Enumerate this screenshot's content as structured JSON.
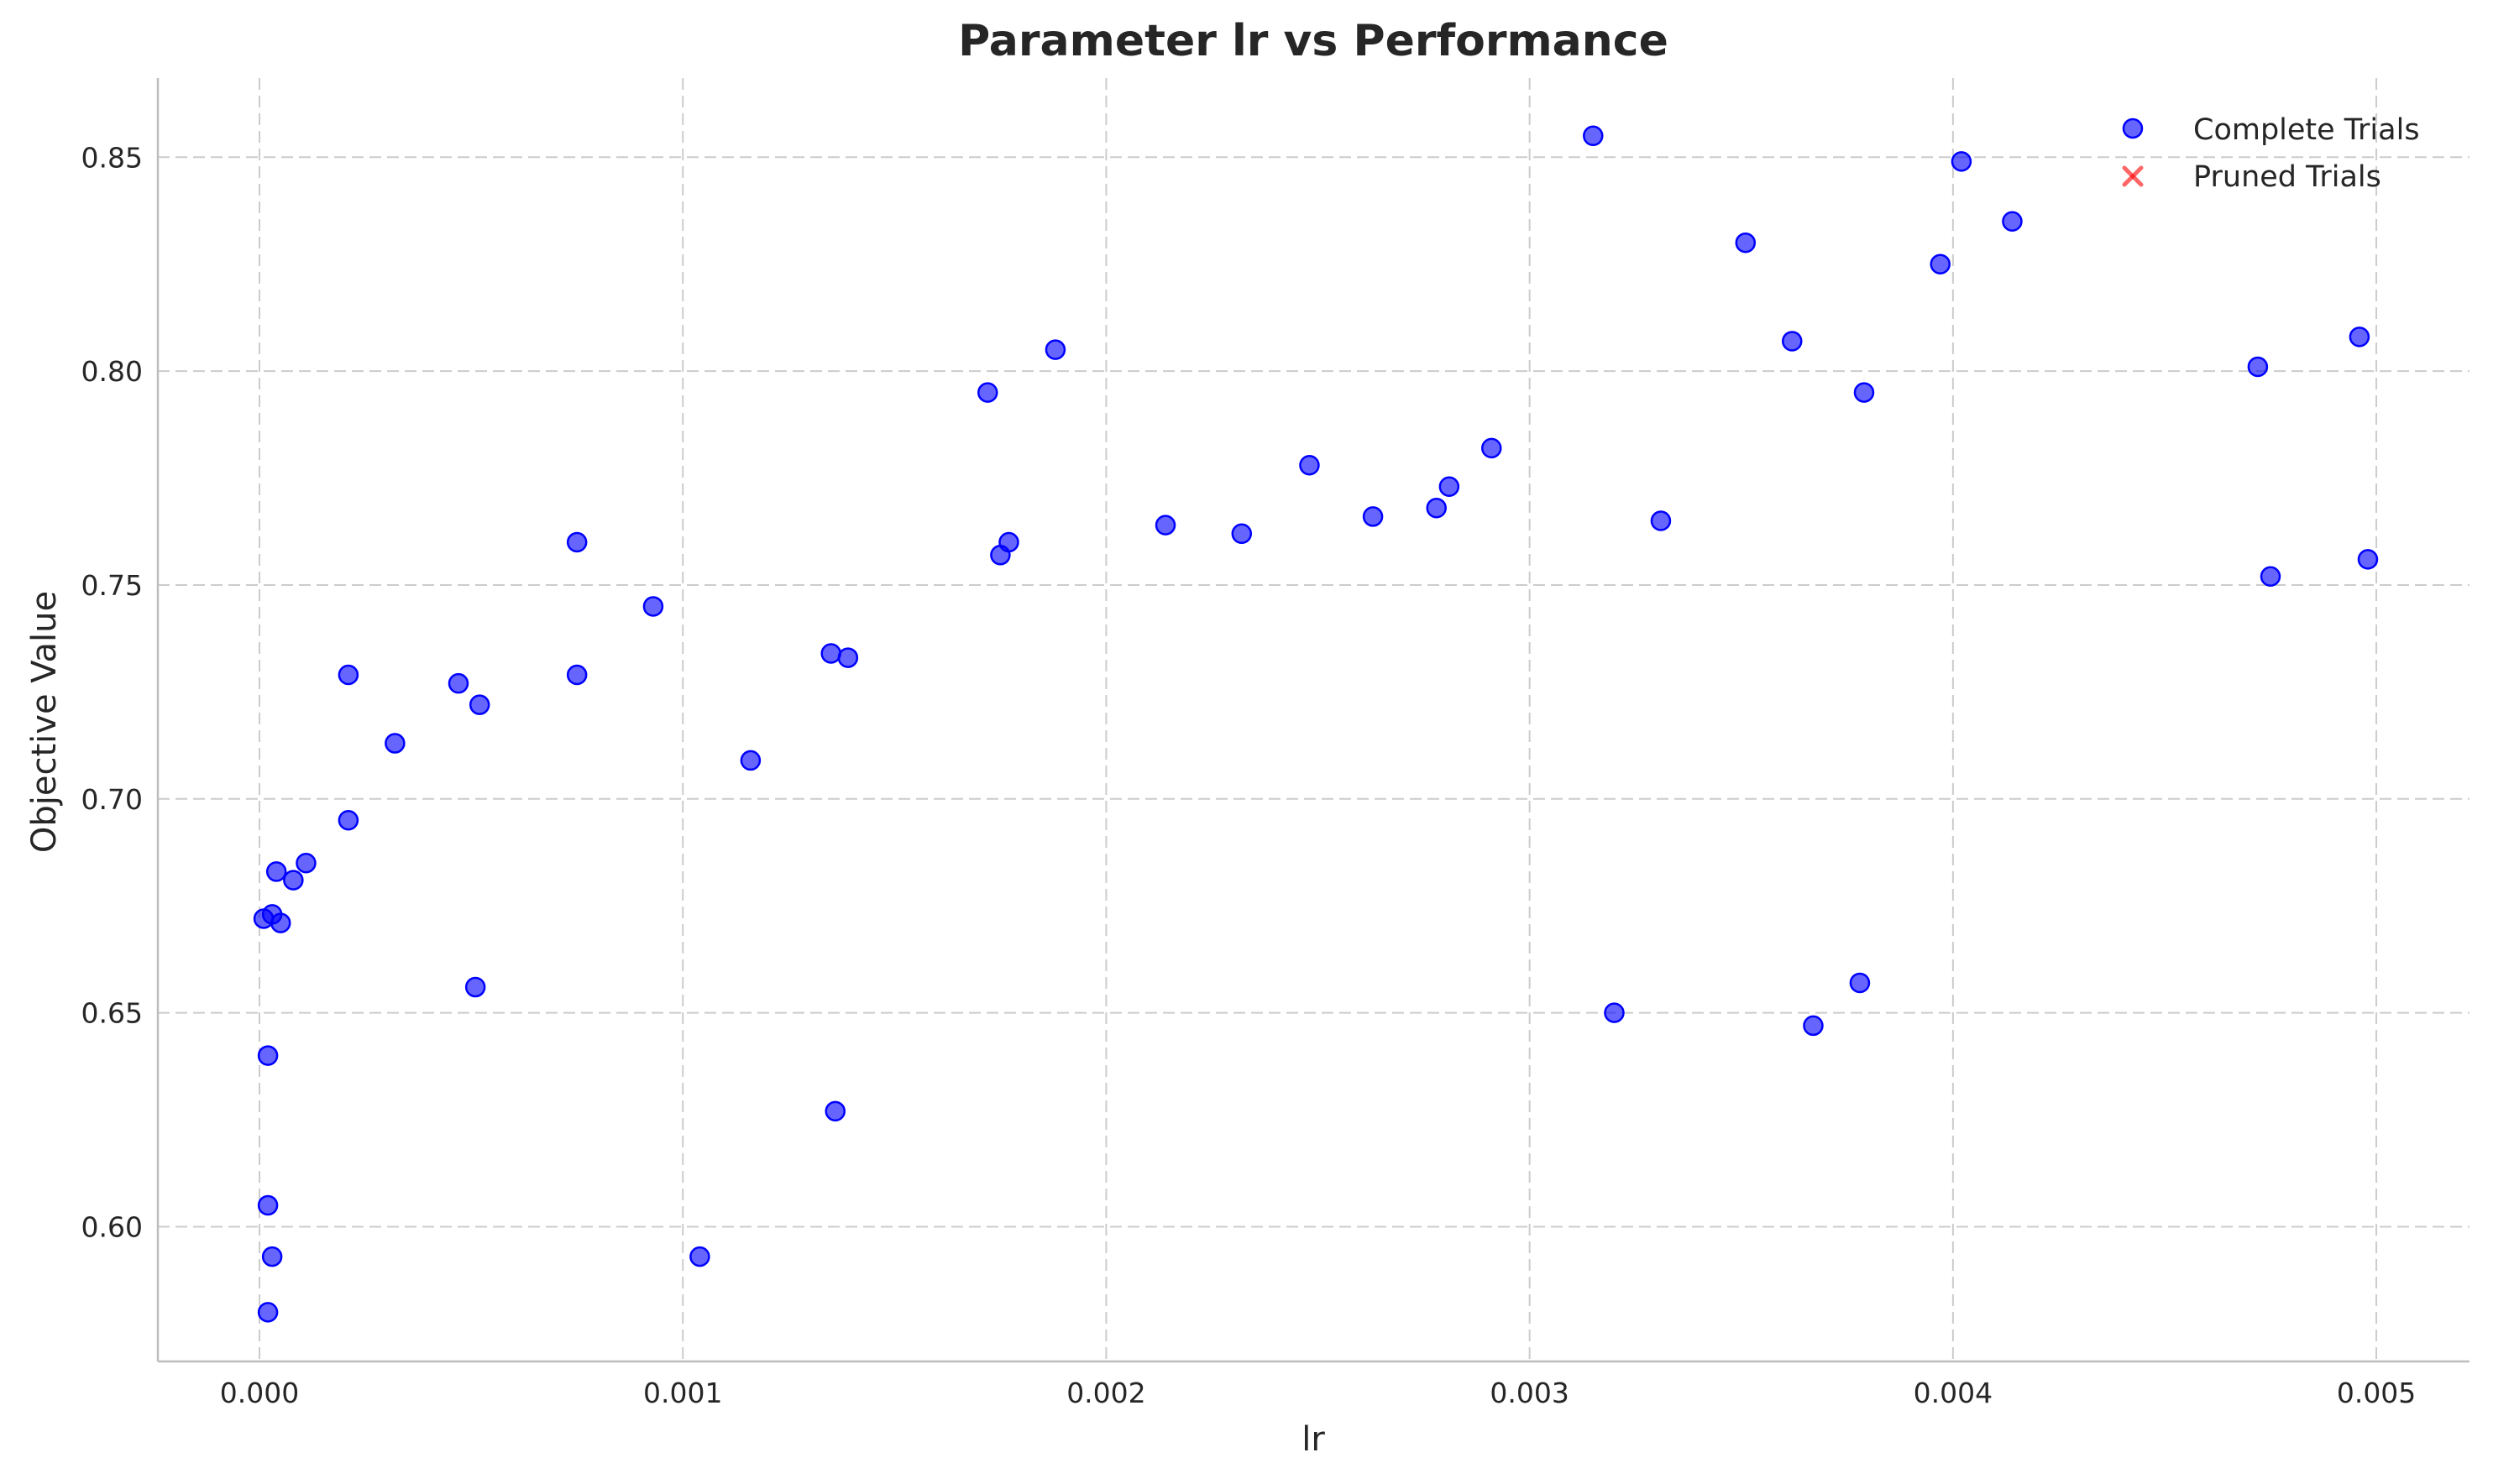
{
  "chart_data": {
    "type": "scatter",
    "title": "Parameter lr vs Performance",
    "xlabel": "lr",
    "ylabel": "Objective Value",
    "xlim": [
      -0.00024,
      0.00522
    ],
    "ylim": [
      0.5685,
      0.8685
    ],
    "x_ticks": [
      0.0,
      0.001,
      0.002,
      0.003,
      0.004,
      0.005
    ],
    "x_tick_labels": [
      "0.000",
      "0.001",
      "0.002",
      "0.003",
      "0.004",
      "0.005"
    ],
    "y_ticks": [
      0.6,
      0.65,
      0.7,
      0.75,
      0.8,
      0.85
    ],
    "y_tick_labels": [
      "0.60",
      "0.65",
      "0.70",
      "0.75",
      "0.80",
      "0.85"
    ],
    "grid": true,
    "legend_position": "top-right",
    "legend": [
      "Complete Trials",
      "Pruned Trials"
    ],
    "colors": {
      "complete": "#0000ff",
      "pruned": "#ff0000"
    },
    "series": [
      {
        "name": "Complete Trials",
        "marker": "circle",
        "points": [
          [
            1e-05,
            0.672
          ],
          [
            3e-05,
            0.673
          ],
          [
            5e-05,
            0.671
          ],
          [
            4e-05,
            0.683
          ],
          [
            8e-05,
            0.681
          ],
          [
            0.00011,
            0.685
          ],
          [
            2e-05,
            0.64
          ],
          [
            2e-05,
            0.605
          ],
          [
            3e-05,
            0.593
          ],
          [
            2e-05,
            0.58
          ],
          [
            0.00021,
            0.729
          ],
          [
            0.00021,
            0.695
          ],
          [
            0.00032,
            0.713
          ],
          [
            0.00047,
            0.727
          ],
          [
            0.00052,
            0.722
          ],
          [
            0.00051,
            0.656
          ],
          [
            0.00075,
            0.76
          ],
          [
            0.00075,
            0.729
          ],
          [
            0.00093,
            0.745
          ],
          [
            0.00104,
            0.593
          ],
          [
            0.00116,
            0.709
          ],
          [
            0.00135,
            0.734
          ],
          [
            0.00139,
            0.733
          ],
          [
            0.00136,
            0.627
          ],
          [
            0.00172,
            0.795
          ],
          [
            0.00175,
            0.757
          ],
          [
            0.00177,
            0.76
          ],
          [
            0.00188,
            0.805
          ],
          [
            0.00214,
            0.764
          ],
          [
            0.00232,
            0.762
          ],
          [
            0.00248,
            0.778
          ],
          [
            0.00263,
            0.766
          ],
          [
            0.00278,
            0.768
          ],
          [
            0.00281,
            0.773
          ],
          [
            0.00291,
            0.782
          ],
          [
            0.00315,
            0.855
          ],
          [
            0.0032,
            0.65
          ],
          [
            0.00331,
            0.765
          ],
          [
            0.00351,
            0.83
          ],
          [
            0.00362,
            0.807
          ],
          [
            0.00367,
            0.647
          ],
          [
            0.00378,
            0.657
          ],
          [
            0.00379,
            0.795
          ],
          [
            0.00397,
            0.825
          ],
          [
            0.00402,
            0.849
          ],
          [
            0.00414,
            0.835
          ],
          [
            0.00472,
            0.801
          ],
          [
            0.00475,
            0.752
          ],
          [
            0.00496,
            0.808
          ],
          [
            0.00498,
            0.756
          ]
        ]
      },
      {
        "name": "Pruned Trials",
        "marker": "x",
        "points": []
      }
    ]
  }
}
